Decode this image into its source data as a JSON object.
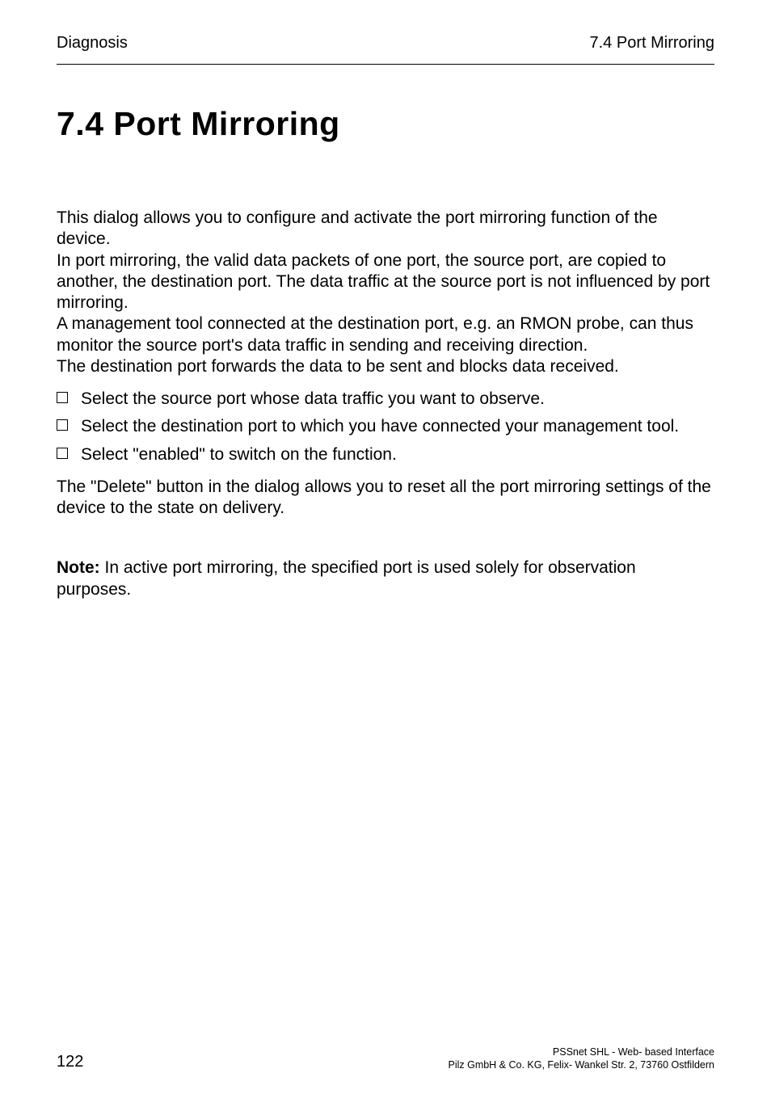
{
  "header": {
    "left": "Diagnosis",
    "right": "7.4  Port Mirroring"
  },
  "title": "7.4   Port Mirroring",
  "intro": {
    "p1": "This dialog allows you to configure and activate the port mirroring function of the device.",
    "p2": "In port mirroring, the valid data packets of one port, the source port, are copied to another, the destination port. The data traffic at the source port is not influenced by port mirroring.",
    "p3": "A management tool connected at the destination port, e.g. an RMON probe, can thus monitor the source port's data traffic in sending and receiving direction.",
    "p4": "The destination port forwards the data to be sent and blocks data received."
  },
  "checklist": [
    "Select the source port whose data traffic you want to observe.",
    "Select the destination port to which you have connected your management tool.",
    "Select \"enabled\" to switch on the function."
  ],
  "after_list": "The \"Delete\" button in the dialog allows you to reset all the port mirroring settings of the device to the state on delivery.",
  "note": {
    "label": "Note:",
    "text": " In active port mirroring, the specified port is used solely for observation purposes."
  },
  "footer": {
    "page": "122",
    "line1": "PSSnet SHL - Web- based Interface",
    "line2": "Pilz GmbH & Co. KG, Felix- Wankel Str. 2, 73760 Ostfildern"
  }
}
